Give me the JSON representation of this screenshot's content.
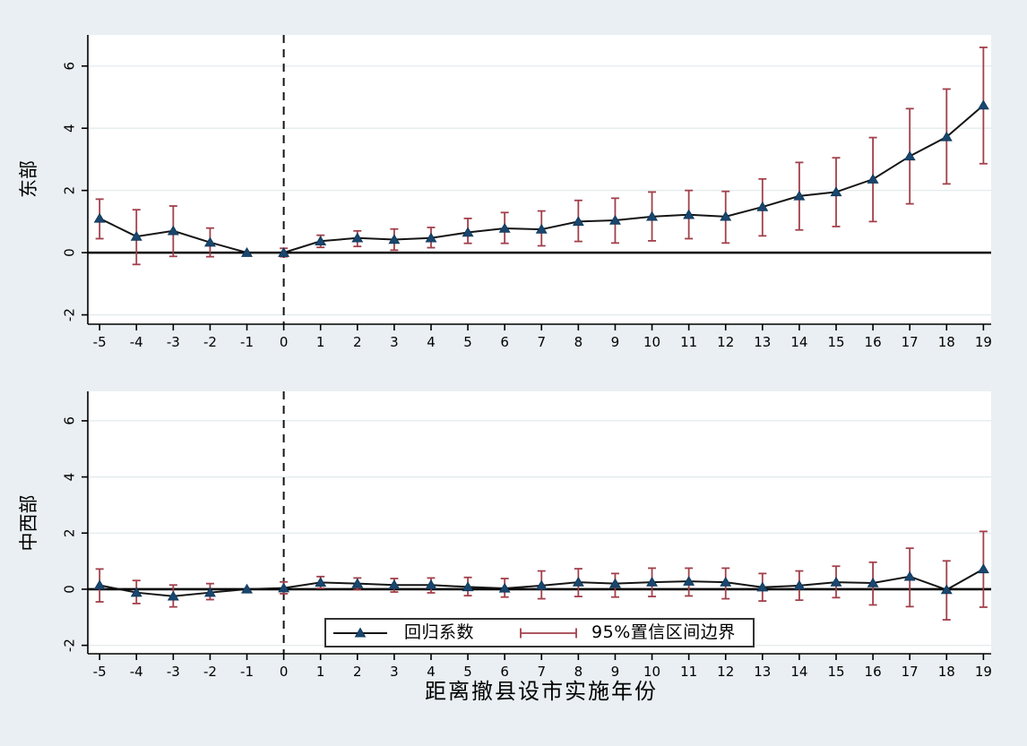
{
  "colors": {
    "background": "#e9eff2",
    "plot_background": "#ffffff",
    "gridline": "#e2ebee",
    "axis": "#000000",
    "coefficient_line": "#141414",
    "marker_fill": "#1a476f",
    "marker_stroke": "#123a5c",
    "ci_color": "#a2404b",
    "reference_line": "#141414",
    "zero_line": "#000000"
  },
  "chart_data": {
    "type": "line",
    "x": [
      -5,
      -4,
      -3,
      -2,
      -1,
      0,
      1,
      2,
      3,
      4,
      5,
      6,
      7,
      8,
      9,
      10,
      11,
      12,
      13,
      14,
      15,
      16,
      17,
      18,
      19
    ],
    "x_tick_labels": [
      "-5",
      "-4",
      "-3",
      "-2",
      "-1",
      "0",
      "1",
      "2",
      "3",
      "4",
      "5",
      "6",
      "7",
      "8",
      "9",
      "10",
      "11",
      "12",
      "13",
      "14",
      "15",
      "16",
      "17",
      "18",
      "19"
    ],
    "xlabel": "距离撤县设市实施年份",
    "y_ticks": [
      -2,
      0,
      2,
      4,
      6
    ],
    "y_tick_labels": [
      "-2",
      "0",
      "2",
      "4",
      "6"
    ],
    "reference_line_x": 0,
    "zero_line_y": 0,
    "grid": true,
    "panels": [
      {
        "ylabel": "东部",
        "ylim": [
          -2.3,
          7.0
        ],
        "coef": [
          1.1,
          0.52,
          0.7,
          0.33,
          0.0,
          0.0,
          0.37,
          0.47,
          0.42,
          0.47,
          0.65,
          0.78,
          0.75,
          1.0,
          1.04,
          1.16,
          1.22,
          1.16,
          1.47,
          1.82,
          1.95,
          2.36,
          3.1,
          3.72,
          4.74
        ],
        "ci_low": [
          0.45,
          -0.38,
          -0.12,
          -0.13,
          null,
          -0.13,
          0.17,
          0.2,
          0.08,
          0.16,
          0.3,
          0.3,
          0.22,
          0.36,
          0.31,
          0.38,
          0.45,
          0.31,
          0.54,
          0.73,
          0.84,
          1.0,
          1.57,
          2.21,
          2.86
        ],
        "ci_high": [
          1.72,
          1.38,
          1.5,
          0.79,
          null,
          0.14,
          0.56,
          0.7,
          0.76,
          0.81,
          1.1,
          1.29,
          1.34,
          1.68,
          1.75,
          1.95,
          2.0,
          1.97,
          2.37,
          2.9,
          3.05,
          3.7,
          4.63,
          5.26,
          6.6
        ]
      },
      {
        "ylabel": "中西部",
        "ylim": [
          -2.3,
          7.05
        ],
        "coef": [
          0.14,
          -0.12,
          -0.25,
          -0.12,
          0.0,
          0.04,
          0.24,
          0.2,
          0.15,
          0.15,
          0.08,
          0.03,
          0.13,
          0.25,
          0.2,
          0.25,
          0.28,
          0.25,
          0.07,
          0.13,
          0.25,
          0.22,
          0.45,
          -0.02,
          0.72
        ],
        "ci_low": [
          -0.45,
          -0.51,
          -0.63,
          -0.37,
          null,
          -0.16,
          0.03,
          -0.02,
          -0.1,
          -0.13,
          -0.23,
          -0.28,
          -0.34,
          -0.26,
          -0.28,
          -0.26,
          -0.24,
          -0.34,
          -0.42,
          -0.39,
          -0.3,
          -0.56,
          -0.62,
          -1.09,
          -0.64
        ],
        "ci_high": [
          0.72,
          0.31,
          0.15,
          0.2,
          null,
          0.26,
          0.45,
          0.4,
          0.38,
          0.4,
          0.42,
          0.38,
          0.65,
          0.73,
          0.56,
          0.75,
          0.75,
          0.75,
          0.56,
          0.65,
          0.82,
          0.96,
          1.46,
          1.01,
          2.06
        ]
      }
    ],
    "legend": {
      "position": "inside-bottom-panel",
      "items": [
        {
          "label": "回归系数",
          "symbol": "line-with-triangle-marker"
        },
        {
          "label": "95%置信区间边界",
          "symbol": "error-bar"
        }
      ]
    },
    "xlim": [
      -5.32,
      19.21
    ]
  }
}
